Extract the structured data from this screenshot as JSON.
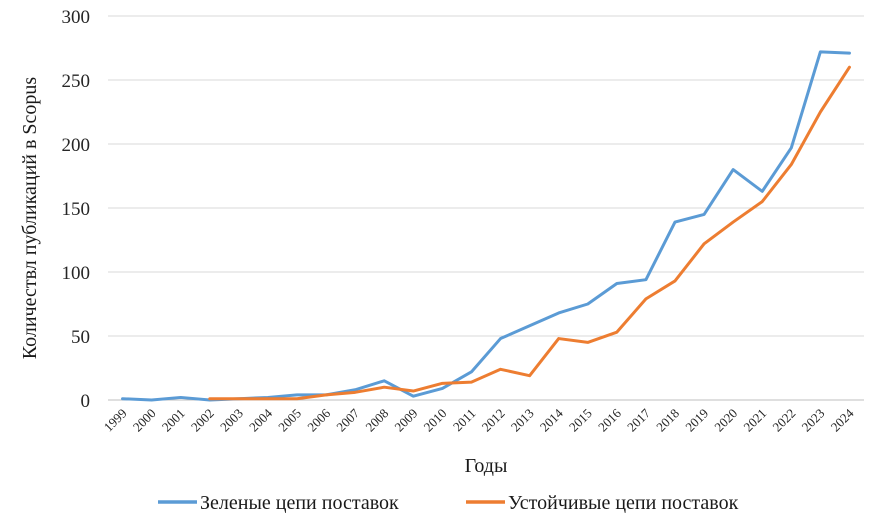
{
  "chart_data": {
    "type": "line",
    "title": "",
    "xlabel": "Годы",
    "ylabel": "Количествл публикаций в Scopus",
    "ylim": [
      0,
      300
    ],
    "yticks": [
      0,
      50,
      100,
      150,
      200,
      250,
      300
    ],
    "grid": "horizontal",
    "legend": "bottom",
    "categories": [
      "1999",
      "2000",
      "2001",
      "2002",
      "2003",
      "2004",
      "2005",
      "2006",
      "2007",
      "2008",
      "2009",
      "2010",
      "2011",
      "2012",
      "2013",
      "2014",
      "2015",
      "2016",
      "2017",
      "2018",
      "2019",
      "2020",
      "2021",
      "2022",
      "2023",
      "2024"
    ],
    "series": [
      {
        "name": "Зеленые цепи поставок",
        "color": "#5B9BD5",
        "values": [
          1,
          0,
          2,
          0,
          1,
          2,
          4,
          4,
          8,
          15,
          3,
          9,
          22,
          48,
          58,
          68,
          75,
          91,
          94,
          139,
          145,
          180,
          163,
          197,
          272,
          271
        ]
      },
      {
        "name": "Устойчивые цепи поставок",
        "color": "#ED7D31",
        "values": [
          null,
          null,
          null,
          1,
          1,
          1,
          1,
          4,
          6,
          10,
          7,
          13,
          14,
          24,
          19,
          48,
          45,
          53,
          79,
          93,
          122,
          139,
          155,
          184,
          225,
          260
        ]
      }
    ]
  }
}
